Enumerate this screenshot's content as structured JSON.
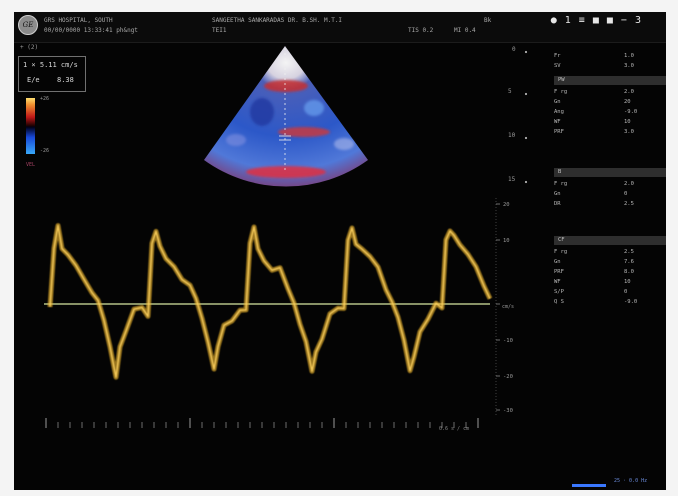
{
  "header": {
    "hospital": "GRS HOSPITAL, SOUTH",
    "date_time": "00/00/0000 13:33:41 ph&ngt",
    "patient": "SANGEETHA SANKARADAS DR. B.SH. M.T.I",
    "mode_left": "TEI1",
    "freq": "TIS 0.2",
    "mi": "MI 0.4",
    "preset": "Bk"
  },
  "logo_text": "GE",
  "probe_icons": "● 1 ≡ ■ ■ − 3",
  "measurement_box": {
    "tag": "+ (2)",
    "line1": "1 × 5.11 cm/s",
    "line2_label": "E/e",
    "line2_value": "8.38"
  },
  "color_scale": {
    "top": "+26",
    "bottom": "-26",
    "ref_label": "VEL"
  },
  "colors": {
    "spectrum": "#e8b028",
    "baseline": "#d8e6a0",
    "panel_header": "#2e2e2e"
  },
  "velocity_scale": {
    "unit": "cm/s",
    "labels": [
      "20",
      "10",
      "",
      "-10",
      "-20",
      "-30"
    ]
  },
  "depth_marks": [
    "0",
    "5",
    "10",
    "15"
  ],
  "time_axis_label": "0.6 s / cm",
  "right_panel": {
    "rows": [
      {
        "label": "Fr",
        "value": "1.0"
      },
      {
        "label": "SV",
        "value": "3.0"
      }
    ],
    "sections": [
      {
        "header": "PW",
        "rows": [
          {
            "label": "F rg",
            "value": "2.0"
          },
          {
            "label": "Gn",
            "value": "20"
          },
          {
            "label": "Ang",
            "value": "-9.0"
          },
          {
            "label": "WF",
            "value": "10"
          },
          {
            "label": "PRF",
            "value": "3.0"
          }
        ]
      },
      {
        "header": "B",
        "rows": [
          {
            "label": "F rg",
            "value": "2.0"
          },
          {
            "label": "Gn",
            "value": "0"
          },
          {
            "label": "DR",
            "value": "2.5"
          }
        ]
      },
      {
        "header": "CF",
        "rows": [
          {
            "label": "F rg",
            "value": "2.5"
          },
          {
            "label": "Gn",
            "value": "7.6"
          },
          {
            "label": "PRF",
            "value": "8.0"
          },
          {
            "label": "WF",
            "value": "10"
          },
          {
            "label": "S/P",
            "value": "0"
          },
          {
            "label": "Q S",
            "value": "-9.0"
          }
        ]
      }
    ]
  },
  "bottom_readout": "25 · 0.0 Hz"
}
